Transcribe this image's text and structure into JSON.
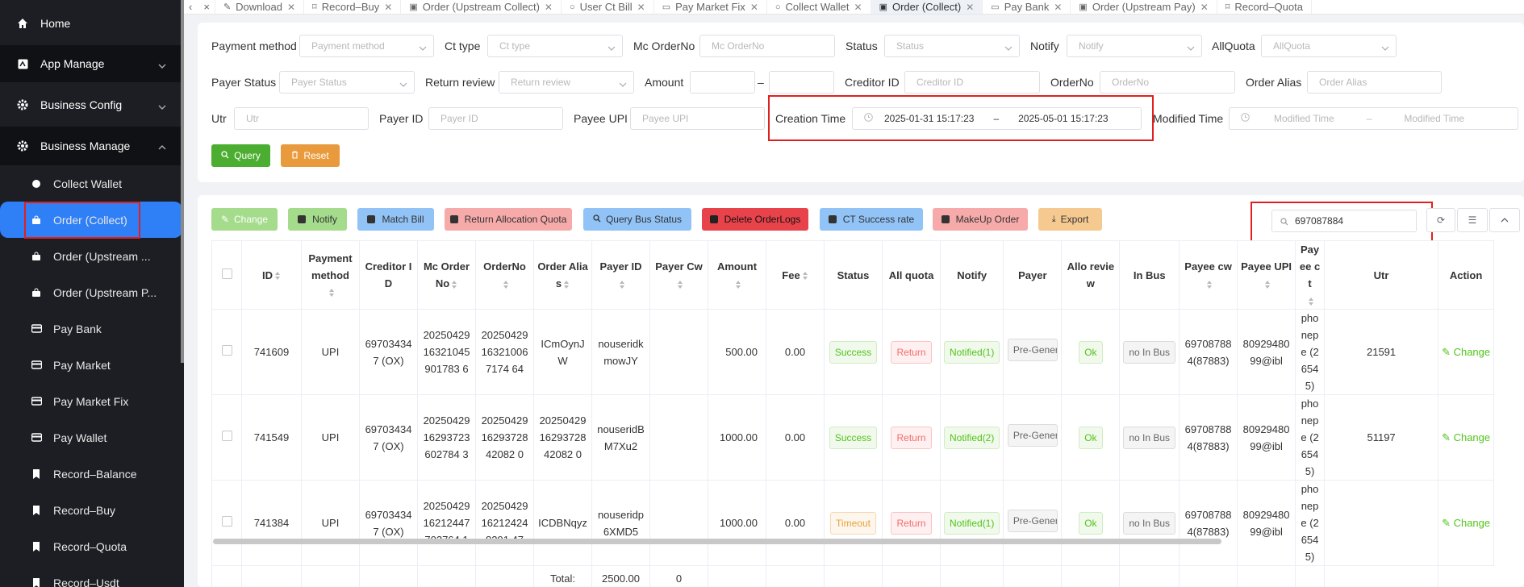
{
  "sidebar": {
    "items": [
      {
        "label": "Home",
        "icon": "home-icon"
      },
      {
        "label": "App Manage",
        "icon": "app-icon"
      },
      {
        "label": "Business Config",
        "icon": "gear-icon"
      },
      {
        "label": "Business Manage",
        "icon": "gear-icon"
      }
    ],
    "sub": [
      {
        "label": "Collect Wallet",
        "icon": "circle-icon"
      },
      {
        "label": "Order (Collect)",
        "icon": "bag-icon"
      },
      {
        "label": "Order (Upstream ...",
        "icon": "bag-icon"
      },
      {
        "label": "Order (Upstream P...",
        "icon": "bag-icon"
      },
      {
        "label": "Pay Bank",
        "icon": "card-icon"
      },
      {
        "label": "Pay Market",
        "icon": "card-icon"
      },
      {
        "label": "Pay Market Fix",
        "icon": "card-icon"
      },
      {
        "label": "Pay Wallet",
        "icon": "card-icon"
      },
      {
        "label": "Record–Balance",
        "icon": "bookmark-icon"
      },
      {
        "label": "Record–Buy",
        "icon": "bookmark-icon"
      },
      {
        "label": "Record–Quota",
        "icon": "bookmark-icon"
      },
      {
        "label": "Record–Usdt",
        "icon": "bookmark-icon"
      }
    ]
  },
  "tabs": [
    {
      "label": "Download",
      "icon": "✎"
    },
    {
      "label": "Record–Buy",
      "icon": "🔖"
    },
    {
      "label": "Order (Upstream Collect)",
      "icon": "👜"
    },
    {
      "label": "User Ct Bill",
      "icon": "○"
    },
    {
      "label": "Pay Market Fix",
      "icon": "▭"
    },
    {
      "label": "Collect Wallet",
      "icon": "○"
    },
    {
      "label": "Order (Collect)",
      "icon": "👜"
    },
    {
      "label": "Pay Bank",
      "icon": "▭"
    },
    {
      "label": "Order (Upstream Pay)",
      "icon": "👜"
    },
    {
      "label": "Record–Quota",
      "icon": "🔖"
    }
  ],
  "filters": {
    "payment_method": {
      "label": "Payment method",
      "placeholder": "Payment method"
    },
    "ct_type": {
      "label": "Ct type",
      "placeholder": "Ct type"
    },
    "mc_orderno": {
      "label": "Mc OrderNo",
      "placeholder": "Mc OrderNo"
    },
    "status": {
      "label": "Status",
      "placeholder": "Status"
    },
    "notify": {
      "label": "Notify",
      "placeholder": "Notify"
    },
    "allquota": {
      "label": "AllQuota",
      "placeholder": "AllQuota"
    },
    "payer_status": {
      "label": "Payer Status",
      "placeholder": "Payer Status"
    },
    "return_review": {
      "label": "Return review",
      "placeholder": "Return review"
    },
    "amount": {
      "label": "Amount",
      "dash": "–"
    },
    "creditor_id": {
      "label": "Creditor ID",
      "placeholder": "Creditor ID"
    },
    "orderno": {
      "label": "OrderNo",
      "placeholder": "OrderNo"
    },
    "order_alias": {
      "label": "Order Alias",
      "placeholder": "Order Alias"
    },
    "utr": {
      "label": "Utr",
      "placeholder": "Utr"
    },
    "payer_id": {
      "label": "Payer ID",
      "placeholder": "Payer ID"
    },
    "payee_upi": {
      "label": "Payee UPI",
      "placeholder": "Payee UPI"
    },
    "creation_time": {
      "label": "Creation Time",
      "start": "2025-01-31 15:17:23",
      "end": "2025-05-01 15:17:23",
      "dash": "–"
    },
    "modified_time": {
      "label": "Modified Time",
      "start": "Modified Time",
      "end": "Modified Time",
      "dash": "–"
    },
    "query": "Query",
    "reset": "Reset"
  },
  "toolbar": {
    "change": "Change",
    "notify": "Notify",
    "match_bill": "Match Bill",
    "return_allocation": "Return Allocation Quota",
    "query_bus": "Query Bus Status",
    "delete_logs": "Delete OrderLogs",
    "ct_success": "CT Success rate",
    "makeup": "MakeUp Order",
    "export": "Export",
    "search_value": "697087884"
  },
  "colors": {
    "primary": "#2f7ff7",
    "success": "#52c41a",
    "warning": "#e89a3c",
    "danger": "#e02020"
  },
  "columns": [
    "ID",
    "Payment method",
    "Creditor ID",
    "Mc OrderNo",
    "OrderNo",
    "Order Alias",
    "Payer ID",
    "Payer Cw",
    "Amount",
    "Fee",
    "Status",
    "All quota",
    "Notify",
    "Payer",
    "Allo review",
    "In Bus",
    "Payee cw",
    "Payee UPI",
    "Payee ct",
    "Utr",
    "Action"
  ],
  "rows": [
    {
      "id": "741609",
      "pm": "UPI",
      "creditor": "697034347 (OX)",
      "mc": "2025042916321045901783 6",
      "orderno": "20250429163210067174 64",
      "alias": "ICmOynJW",
      "payer": "nouseridkmowJY",
      "payer_cw": "",
      "amount": "500.00",
      "fee": "0.00",
      "status": "Success",
      "quota": "Return",
      "notify": "Notified(1)",
      "payer_status": "Pre-Generated",
      "allo": "Ok",
      "inbus": "no In Bus",
      "payee_cw": "697087884(87883)",
      "payee_upi": "8092948099@ibl",
      "payee_ct": "phonepe (26545)",
      "utr": "21591",
      "action": "Change"
    },
    {
      "id": "741549",
      "pm": "UPI",
      "creditor": "697034347 (OX)",
      "mc": "2025042916293723602784 3",
      "orderno": "202504291629372842082 0",
      "alias": "202504291629372842082 0",
      "payer": "nouseridBM7Xu2",
      "payer_cw": "",
      "amount": "1000.00",
      "fee": "0.00",
      "status": "Success",
      "quota": "Return",
      "notify": "Notified(2)",
      "payer_status": "Pre-Generated",
      "allo": "Ok",
      "inbus": "no In Bus",
      "payee_cw": "697087884(87883)",
      "payee_upi": "8092948099@ibl",
      "payee_ct": "phonepe (26545)",
      "utr": "51197",
      "action": "Change"
    },
    {
      "id": "741384",
      "pm": "UPI",
      "creditor": "697034347 (OX)",
      "mc": "2025042916212447702764 1",
      "orderno": "20250429162124248291 47",
      "alias": "ICDBNqyz",
      "payer": "nouseridp6XMD5",
      "payer_cw": "",
      "amount": "1000.00",
      "fee": "0.00",
      "status": "Timeout",
      "quota": "Return",
      "notify": "Notified(1)",
      "payer_status": "Pre-Generated",
      "allo": "Ok",
      "inbus": "no In Bus",
      "payee_cw": "697087884(87883)",
      "payee_upi": "8092948099@ibl",
      "payee_ct": "phonepe (26545)",
      "utr": "",
      "action": "Change"
    }
  ],
  "totals": {
    "label": "Total:",
    "amount": "2500.00",
    "fee": "0"
  }
}
